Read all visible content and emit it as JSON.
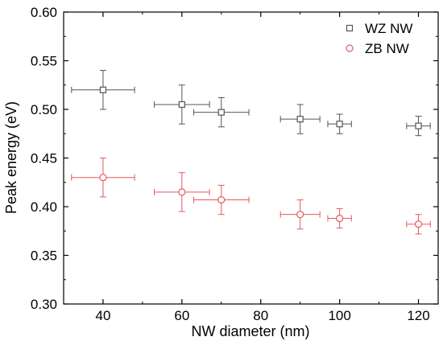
{
  "chart_data": {
    "type": "scatter",
    "title": "",
    "xlabel": "NW diameter (nm)",
    "ylabel": "Peak energy (eV)",
    "xlim": [
      30,
      125
    ],
    "ylim": [
      0.3,
      0.6
    ],
    "x_ticks": [
      40,
      60,
      80,
      100,
      120
    ],
    "y_ticks": [
      0.3,
      0.35,
      0.4,
      0.45,
      0.5,
      0.55,
      0.6
    ],
    "x_tick_labels": [
      "40",
      "60",
      "80",
      "100",
      "120"
    ],
    "y_tick_labels": [
      "0.30",
      "0.35",
      "0.40",
      "0.45",
      "0.50",
      "0.55",
      "0.60"
    ],
    "grid": false,
    "legend_position": "top-right",
    "series": [
      {
        "name": "WZ NW",
        "marker": "square",
        "color": "#555555",
        "points": [
          {
            "x": 40,
            "y": 0.52,
            "xerr": 8,
            "yerr": 0.02
          },
          {
            "x": 60,
            "y": 0.505,
            "xerr": 7,
            "yerr": 0.02
          },
          {
            "x": 70,
            "y": 0.497,
            "xerr": 7,
            "yerr": 0.015
          },
          {
            "x": 90,
            "y": 0.49,
            "xerr": 5,
            "yerr": 0.015
          },
          {
            "x": 100,
            "y": 0.485,
            "xerr": 3,
            "yerr": 0.01
          },
          {
            "x": 120,
            "y": 0.483,
            "xerr": 3,
            "yerr": 0.01
          }
        ]
      },
      {
        "name": "ZB NW",
        "marker": "circle",
        "color": "#e8585a",
        "points": [
          {
            "x": 40,
            "y": 0.43,
            "xerr": 8,
            "yerr": 0.02
          },
          {
            "x": 60,
            "y": 0.415,
            "xerr": 7,
            "yerr": 0.02
          },
          {
            "x": 70,
            "y": 0.407,
            "xerr": 7,
            "yerr": 0.015
          },
          {
            "x": 90,
            "y": 0.392,
            "xerr": 5,
            "yerr": 0.015
          },
          {
            "x": 100,
            "y": 0.388,
            "xerr": 3,
            "yerr": 0.01
          },
          {
            "x": 120,
            "y": 0.382,
            "xerr": 3,
            "yerr": 0.01
          }
        ]
      }
    ]
  }
}
